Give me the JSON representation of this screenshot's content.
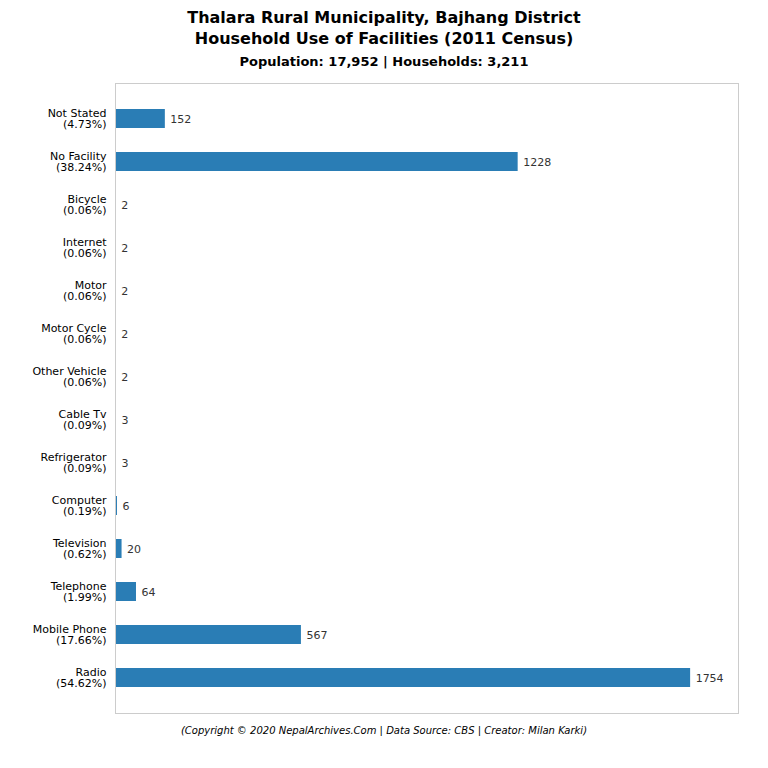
{
  "chart_data": {
    "type": "bar",
    "orientation": "horizontal",
    "title": "Thalara Rural Municipality, Bajhang District\nHousehold Use of Facilities (2011 Census)",
    "subtitle": "Population: 17,952 | Households: 3,211",
    "caption": "(Copyright © 2020 NepalArchives.Com | Data Source: CBS | Creator: Milan Karki)",
    "categories": [
      "Radio\n(54.62%)",
      "Mobile Phone\n(17.66%)",
      "Telephone\n(1.99%)",
      "Television\n(0.62%)",
      "Computer\n(0.19%)",
      "Refrigerator\n(0.09%)",
      "Cable Tv\n(0.09%)",
      "Other Vehicle\n(0.06%)",
      "Motor Cycle\n(0.06%)",
      "Motor\n(0.06%)",
      "Internet\n(0.06%)",
      "Bicycle\n(0.06%)",
      "No Facility\n(38.24%)",
      "Not Stated\n(4.73%)"
    ],
    "values": [
      1754,
      567,
      64,
      20,
      6,
      3,
      3,
      2,
      2,
      2,
      2,
      2,
      1228,
      152
    ],
    "color": "#2a7db5",
    "xlim": [
      0,
      1900
    ],
    "data_labels": true,
    "tick_labels": "y",
    "grid": false
  }
}
